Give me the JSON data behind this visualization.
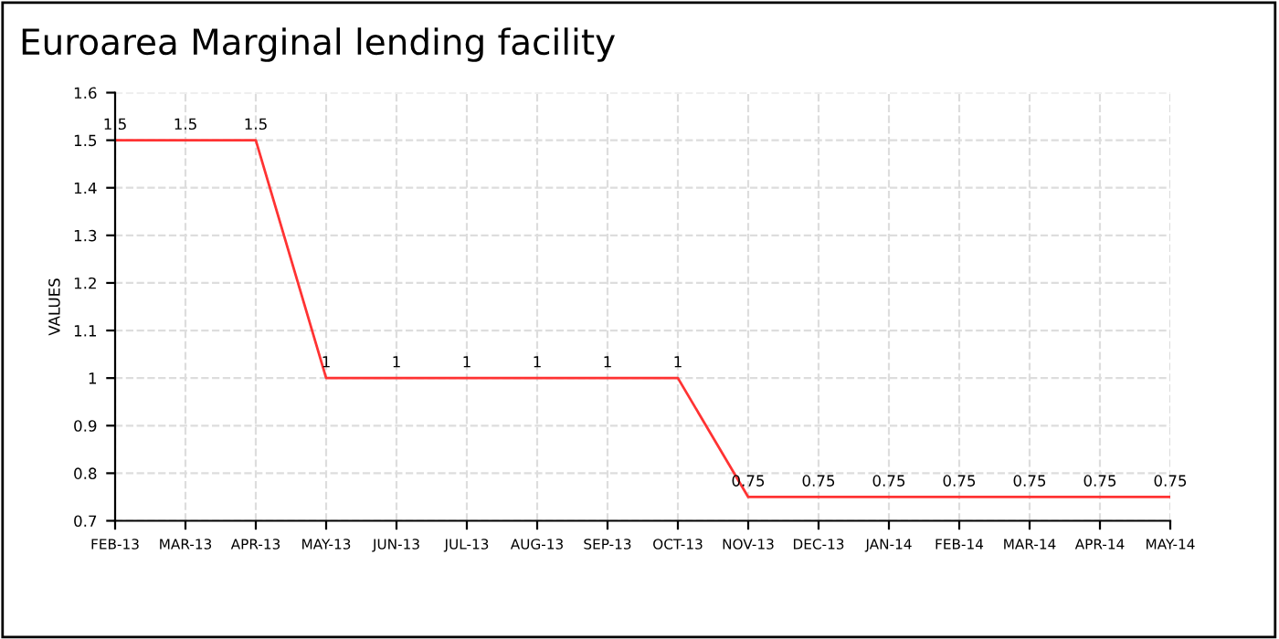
{
  "chart_data": {
    "type": "line",
    "title": "Euroarea Marginal lending facility",
    "ylabel": "VALUES",
    "categories": [
      "FEB-13",
      "MAR-13",
      "APR-13",
      "MAY-13",
      "JUN-13",
      "JUL-13",
      "AUG-13",
      "SEP-13",
      "OCT-13",
      "NOV-13",
      "DEC-13",
      "JAN-14",
      "FEB-14",
      "MAR-14",
      "APR-14",
      "MAY-14"
    ],
    "series": [
      {
        "color": "#ff3333",
        "values": [
          1.5,
          1.5,
          1.5,
          1,
          1,
          1,
          1,
          1,
          1,
          0.75,
          0.75,
          0.75,
          0.75,
          0.75,
          0.75,
          0.75
        ]
      }
    ],
    "ylim": [
      0.7,
      1.6
    ],
    "yticks": [
      0.7,
      0.8,
      0.9,
      1,
      1.1,
      1.2,
      1.3,
      1.4,
      1.5,
      1.6
    ],
    "grid": true,
    "data_labels": true,
    "marker": "none",
    "line_style": "solid"
  }
}
